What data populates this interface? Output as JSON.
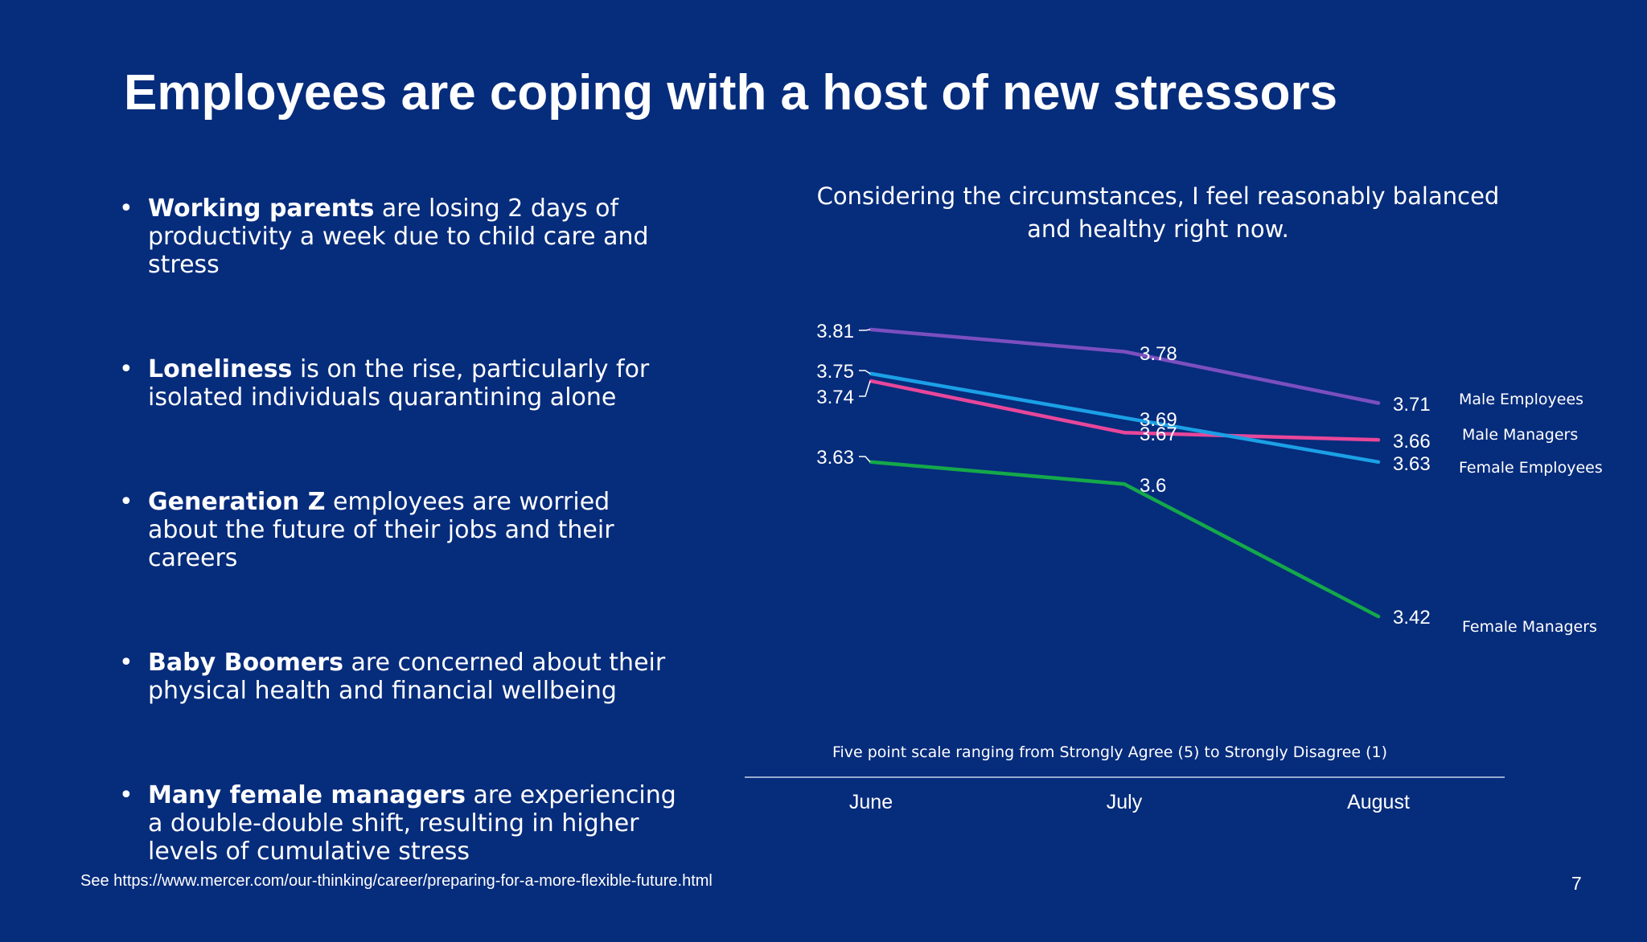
{
  "title": "Employees are coping with a host of new stressors",
  "bullets": [
    {
      "bold": "Working parents",
      "rest": " are losing 2 days of productivity a week due to child care and stress"
    },
    {
      "bold": "Loneliness",
      "rest": " is on the rise, particularly for isolated individuals quarantining alone"
    },
    {
      "bold": "Generation Z",
      "rest": " employees are worried about the future of their jobs and their careers"
    },
    {
      "bold": "Baby Boomers",
      "rest": " are concerned about their physical health and financial wellbeing"
    },
    {
      "bold": "Many female managers",
      "rest": " are experiencing a double-double shift, resulting in higher levels of cumulative stress"
    }
  ],
  "source": "See https://www.mercer.com/our-thinking/career/preparing-for-a-more-flexible-future.html",
  "page_number": "7",
  "chart_data": {
    "type": "line",
    "title": "Considering the circumstances, I feel reasonably balanced and healthy right now.",
    "note": "Five point scale ranging from Strongly Agree (5) to Strongly Disagree (1)",
    "categories": [
      "June",
      "July",
      "August"
    ],
    "series": [
      {
        "name": "Male Employees",
        "values": [
          3.81,
          3.78,
          3.71
        ],
        "labels": [
          "3.81",
          "3.78",
          "3.71"
        ],
        "color": "#7b4fc0"
      },
      {
        "name": "Male Managers",
        "values": [
          3.74,
          3.67,
          3.66
        ],
        "labels": [
          "3.74",
          "3.67",
          "3.66"
        ],
        "color": "#e8479a"
      },
      {
        "name": "Female Employees",
        "values": [
          3.75,
          3.69,
          3.63
        ],
        "labels": [
          "3.75",
          "3.69",
          "3.63"
        ],
        "color": "#1ba0e6"
      },
      {
        "name": "Female Managers",
        "values": [
          3.63,
          3.6,
          3.42
        ],
        "labels": [
          "3.63",
          "3.6",
          "3.42"
        ],
        "color": "#14a84a"
      }
    ],
    "grid": false,
    "legend": "right, labels at line ends"
  }
}
